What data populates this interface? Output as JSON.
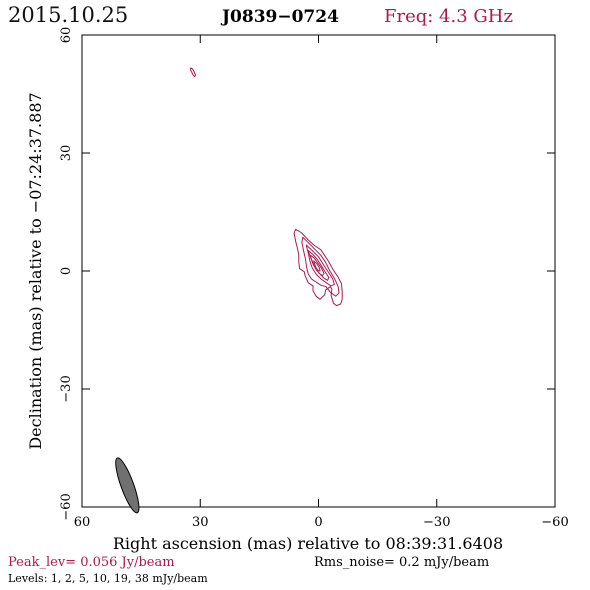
{
  "header": {
    "date": "2015.10.25",
    "source": "J0839−0724",
    "freq": "Freq: 4.3 GHz"
  },
  "footer": {
    "peak": "Peak_lev=  0.056 Jy/beam",
    "rms": "Rms_noise=  0.2 mJy/beam",
    "levels": "Levels:   1,   2,   5,  10,  19,  38 mJy/beam"
  },
  "colors": {
    "contour": "#b0184a",
    "beam_fill": "#707070",
    "axis": "#000000"
  },
  "chart_data": {
    "type": "contour",
    "xlabel": "Right ascension (mas) relative to 08:39:31.6408",
    "ylabel": "Declination (mas) relative to −07:24:37.887",
    "xlim": [
      60,
      -60
    ],
    "ylim": [
      -60,
      60
    ],
    "xticks": [
      60,
      30,
      0,
      -30,
      -60
    ],
    "xtick_labels": [
      "60",
      "30",
      "0",
      "−30",
      "−60"
    ],
    "yticks": [
      -60,
      -30,
      0,
      30,
      60
    ],
    "ytick_labels": [
      "−60",
      "−30",
      "0",
      "30",
      "60"
    ],
    "contour_levels_mJy": [
      1,
      2,
      5,
      10,
      19,
      38
    ],
    "peak_Jy_per_beam": 0.056,
    "rms_mJy_per_beam": 0.2,
    "contours": [
      {
        "level_mJy": 1,
        "points": [
          [
            5.8,
            10.6
          ],
          [
            4.4,
            9.8
          ],
          [
            2.5,
            7.8
          ],
          [
            1.2,
            6.6
          ],
          [
            0.6,
            6.2
          ],
          [
            -0.6,
            5.4
          ],
          [
            -2.6,
            2.4
          ],
          [
            -3.6,
            0.5
          ],
          [
            -5.0,
            -1.6
          ],
          [
            -5.8,
            -3.2
          ],
          [
            -6.0,
            -5.2
          ],
          [
            -6.0,
            -7.2
          ],
          [
            -5.6,
            -8.4
          ],
          [
            -4.6,
            -8.8
          ],
          [
            -3.8,
            -8.2
          ],
          [
            -3.2,
            -6.2
          ],
          [
            -3.4,
            -4.6
          ],
          [
            -3.0,
            -4.0
          ],
          [
            -1.8,
            -4.8
          ],
          [
            -1.6,
            -6.0
          ],
          [
            -0.4,
            -7.2
          ],
          [
            0.6,
            -6.4
          ],
          [
            1.4,
            -5.0
          ],
          [
            1.4,
            -3.8
          ],
          [
            2.6,
            -3.0
          ],
          [
            3.4,
            -1.2
          ],
          [
            3.6,
            -0.2
          ],
          [
            4.8,
            0.6
          ],
          [
            5.0,
            2.2
          ],
          [
            5.0,
            4.2
          ],
          [
            5.4,
            6.0
          ],
          [
            5.8,
            7.6
          ],
          [
            6.2,
            9.6
          ]
        ]
      },
      {
        "level_mJy": 2,
        "points": [
          [
            4.0,
            8.6
          ],
          [
            1.8,
            6.4
          ],
          [
            -0.6,
            4.0
          ],
          [
            -1.8,
            2.2
          ],
          [
            -2.9,
            0.0
          ],
          [
            -4.1,
            -2.0
          ],
          [
            -5.0,
            -4.0
          ],
          [
            -5.2,
            -5.6
          ],
          [
            -4.4,
            -6.4
          ],
          [
            -3.0,
            -5.4
          ],
          [
            -1.9,
            -4.0
          ],
          [
            -0.6,
            -3.6
          ],
          [
            0.6,
            -2.8
          ],
          [
            1.8,
            -2.0
          ],
          [
            2.6,
            -0.8
          ],
          [
            3.0,
            0.8
          ],
          [
            3.3,
            3.0
          ],
          [
            3.8,
            5.2
          ],
          [
            4.2,
            7.2
          ]
        ]
      },
      {
        "level_mJy": 5,
        "points": [
          [
            3.1,
            6.6
          ],
          [
            1.6,
            5.2
          ],
          [
            0.0,
            3.6
          ],
          [
            -1.4,
            1.4
          ],
          [
            -2.6,
            -0.4
          ],
          [
            -3.6,
            -2.0
          ],
          [
            -4.0,
            -3.4
          ],
          [
            -3.2,
            -3.8
          ],
          [
            -2.0,
            -3.0
          ],
          [
            -0.6,
            -2.0
          ],
          [
            0.6,
            -0.8
          ],
          [
            1.6,
            0.8
          ],
          [
            2.2,
            2.6
          ],
          [
            2.6,
            4.6
          ],
          [
            3.0,
            6.0
          ]
        ]
      },
      {
        "level_mJy": 10,
        "points": [
          [
            2.6,
            5.2
          ],
          [
            1.4,
            4.2
          ],
          [
            0.2,
            2.8
          ],
          [
            -0.8,
            1.2
          ],
          [
            -1.8,
            -0.4
          ],
          [
            -2.6,
            -1.6
          ],
          [
            -2.3,
            -2.4
          ],
          [
            -1.4,
            -1.8
          ],
          [
            -0.4,
            -0.8
          ],
          [
            0.6,
            0.4
          ],
          [
            1.4,
            1.8
          ],
          [
            1.9,
            3.2
          ],
          [
            2.4,
            4.6
          ]
        ]
      },
      {
        "level_mJy": 19,
        "points": [
          [
            2.0,
            4.0
          ],
          [
            1.0,
            3.2
          ],
          [
            0.0,
            1.8
          ],
          [
            -0.8,
            0.6
          ],
          [
            -1.4,
            -0.6
          ],
          [
            -1.0,
            -1.2
          ],
          [
            -0.2,
            -0.6
          ],
          [
            0.6,
            0.4
          ],
          [
            1.2,
            1.6
          ],
          [
            1.7,
            2.8
          ],
          [
            2.0,
            3.6
          ]
        ]
      },
      {
        "level_mJy": 38,
        "points": [
          [
            1.2,
            2.6
          ],
          [
            0.4,
            1.8
          ],
          [
            -0.2,
            0.8
          ],
          [
            -0.4,
            0.0
          ],
          [
            0.1,
            0.1
          ],
          [
            0.6,
            0.8
          ],
          [
            1.0,
            1.8
          ],
          [
            1.2,
            2.4
          ]
        ]
      },
      {
        "level_mJy": 1,
        "points": [
          [
            32.4,
            51.6
          ],
          [
            32.0,
            51.4
          ],
          [
            31.6,
            50.8
          ],
          [
            31.2,
            49.8
          ],
          [
            31.4,
            49.4
          ],
          [
            31.8,
            49.8
          ],
          [
            32.2,
            50.6
          ],
          [
            32.5,
            51.2
          ]
        ]
      }
    ],
    "beam": {
      "ra_mas": 48.5,
      "dec_mas": -54.5,
      "major_mas": 7.4,
      "minor_mas": 1.6,
      "pa_deg": -20
    }
  }
}
